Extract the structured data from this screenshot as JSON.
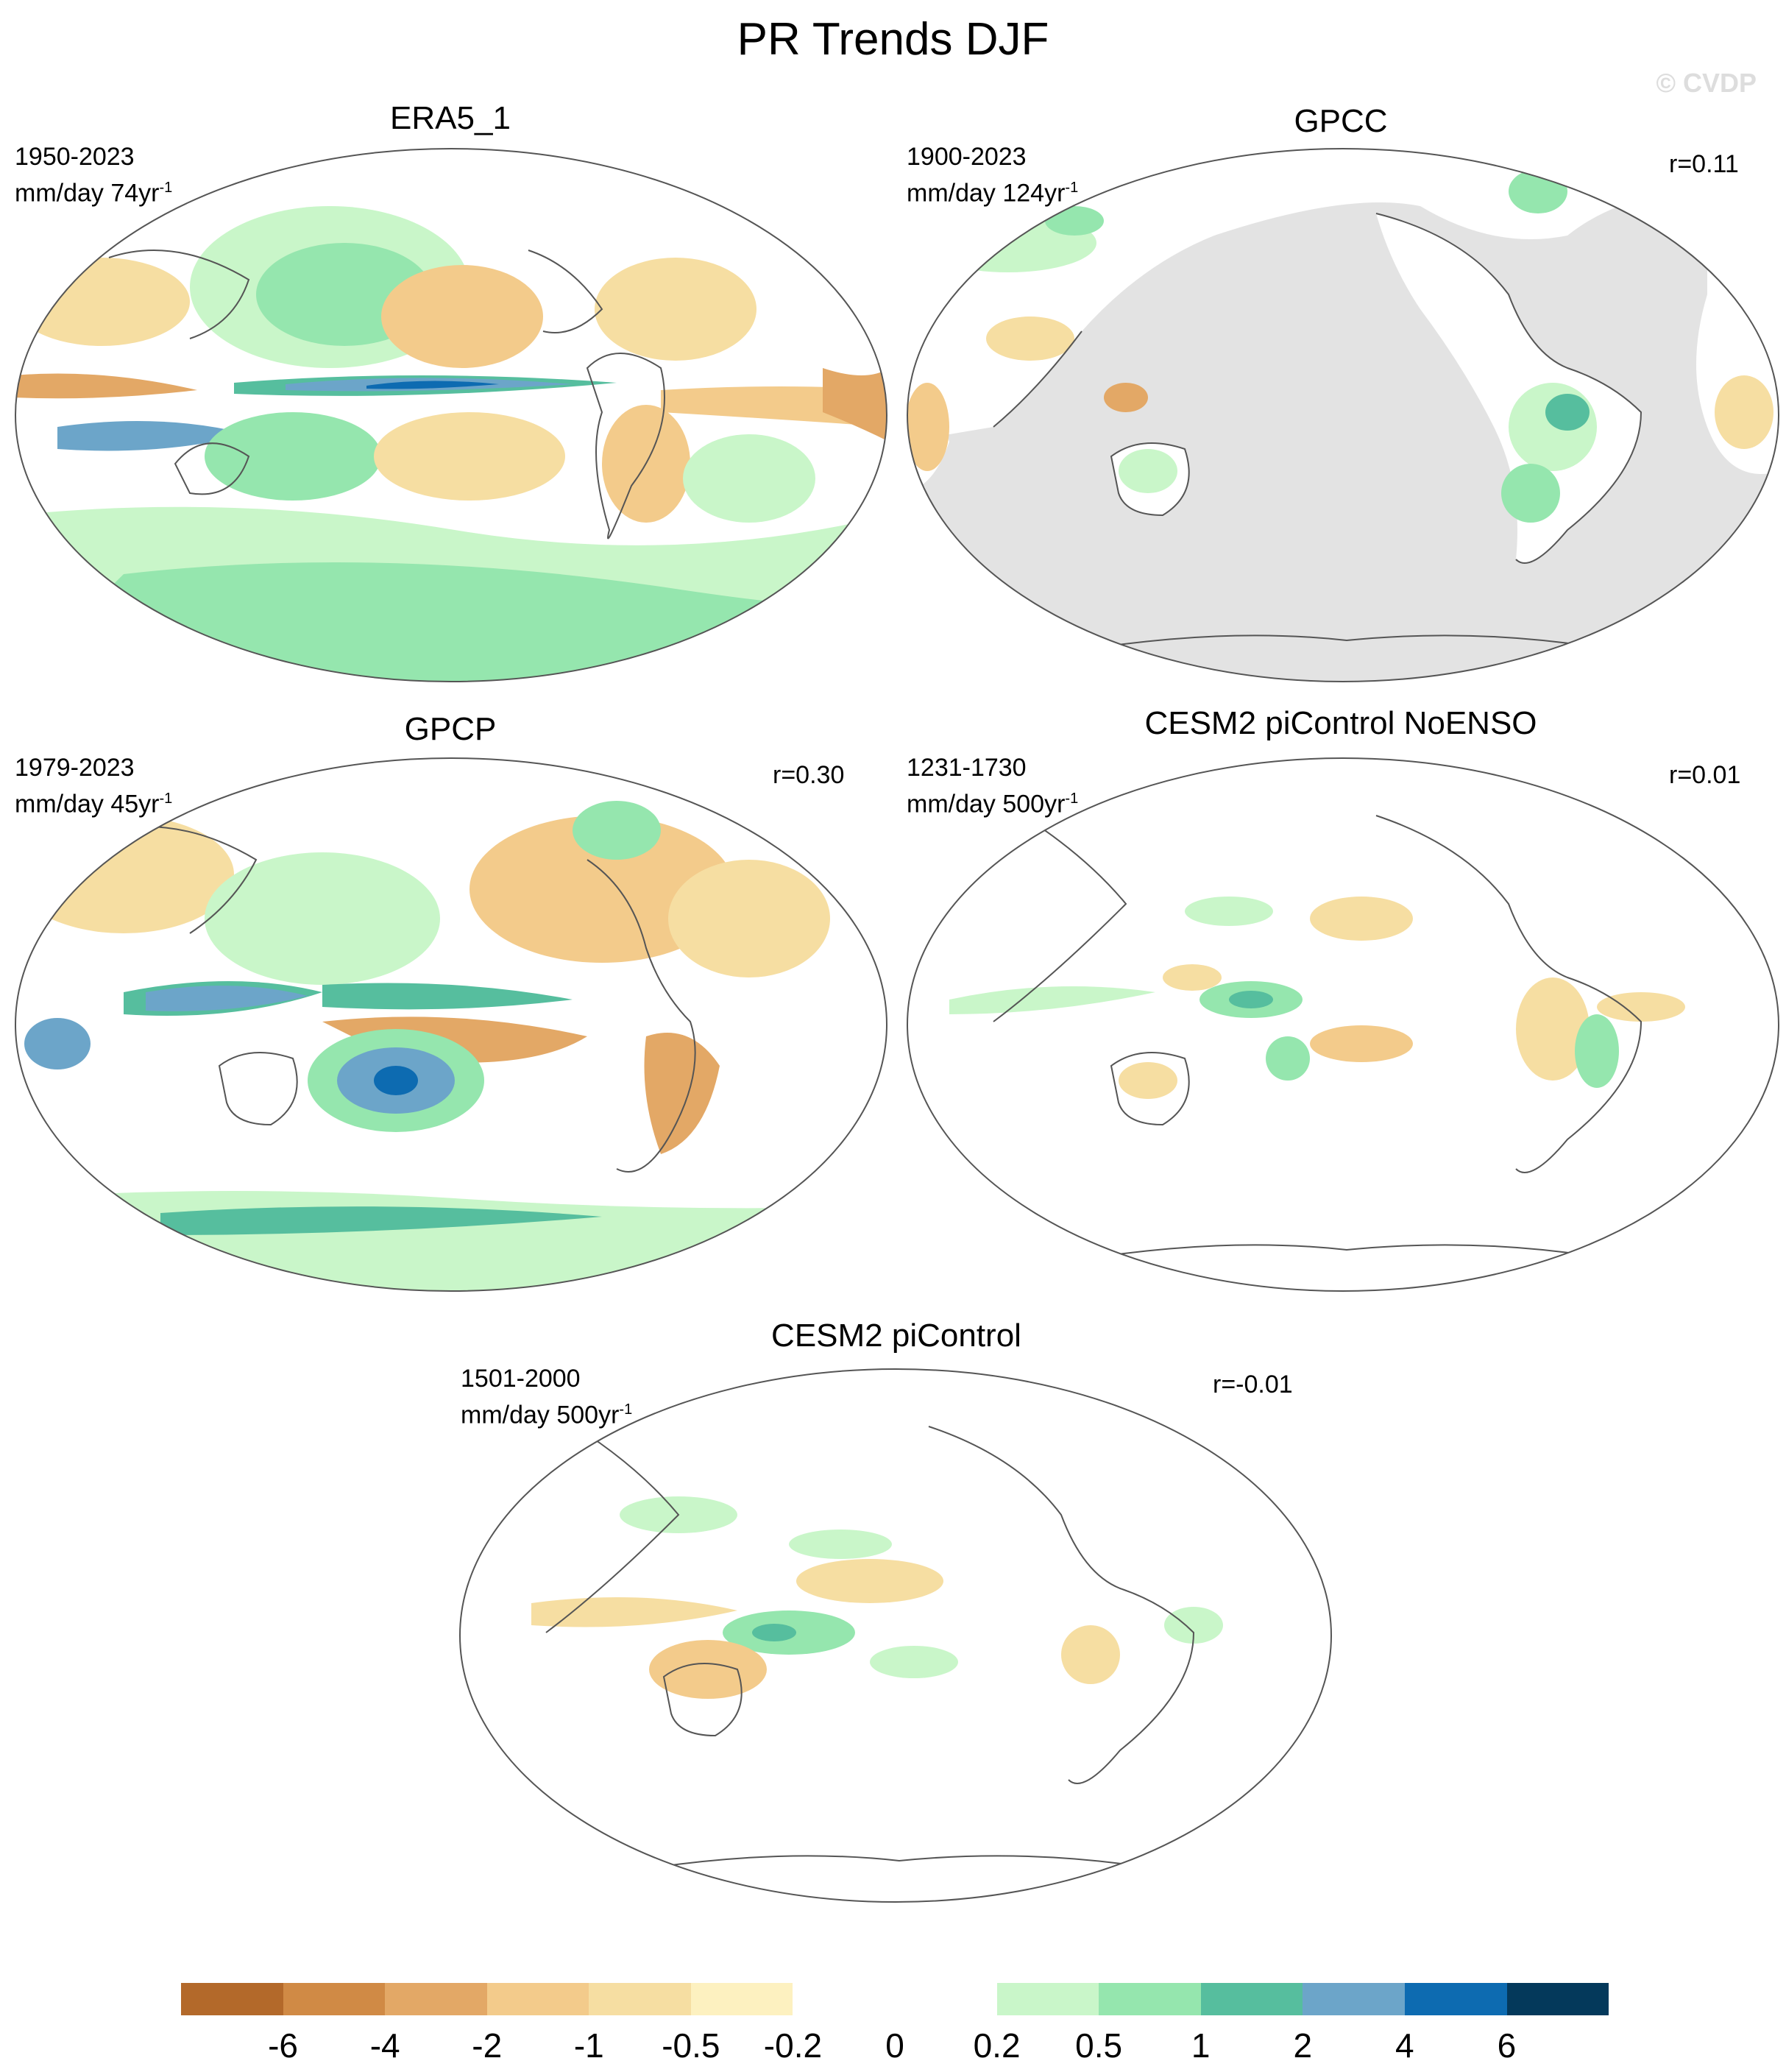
{
  "title": "PR Trends DJF",
  "watermark": "© CVDP",
  "panels": [
    {
      "title": "ERA5_1",
      "period": "1950-2023",
      "units": "mm/day 74yr",
      "units_exp": "-1",
      "corr": ""
    },
    {
      "title": "GPCC",
      "period": "1900-2023",
      "units": "mm/day 124yr",
      "units_exp": "-1",
      "corr": "r=0.11"
    },
    {
      "title": "GPCP",
      "period": "1979-2023",
      "units": "mm/day 45yr",
      "units_exp": "-1",
      "corr": "r=0.30"
    },
    {
      "title": "CESM2 piControl NoENSO",
      "period": "1231-1730",
      "units": "mm/day 500yr",
      "units_exp": "-1",
      "corr": "r=0.01"
    },
    {
      "title": "CESM2 piControl",
      "period": "1501-2000",
      "units": "mm/day 500yr",
      "units_exp": "-1",
      "corr": "r=-0.01"
    }
  ],
  "colorbar": {
    "labels": [
      "-6",
      "-4",
      "-2",
      "-1",
      "-0.5",
      "-0.2",
      "0",
      "0.2",
      "0.5",
      "1",
      "2",
      "4",
      "6"
    ],
    "colors": [
      "#b3692a",
      "#d08a45",
      "#e3a866",
      "#f3cb8b",
      "#f6dea2",
      "#fdf1c0",
      "#ffffff",
      "#ffffff",
      "#c9f6c9",
      "#95e6ae",
      "#56be9e",
      "#6ca5c9",
      "#0d6bb1",
      "#04395b"
    ]
  },
  "map_colors": {
    "ocean_masked": "#e3e3e3",
    "coast": "#555555",
    "brown_light": "#f6dea2",
    "brown_mid": "#f3cb8b",
    "brown_dark": "#e3a866",
    "green_light": "#c9f6c9",
    "green_mid": "#95e6ae",
    "green_dark": "#56be9e",
    "blue_mid": "#6ca5c9",
    "blue_dark": "#0d6bb1"
  }
}
